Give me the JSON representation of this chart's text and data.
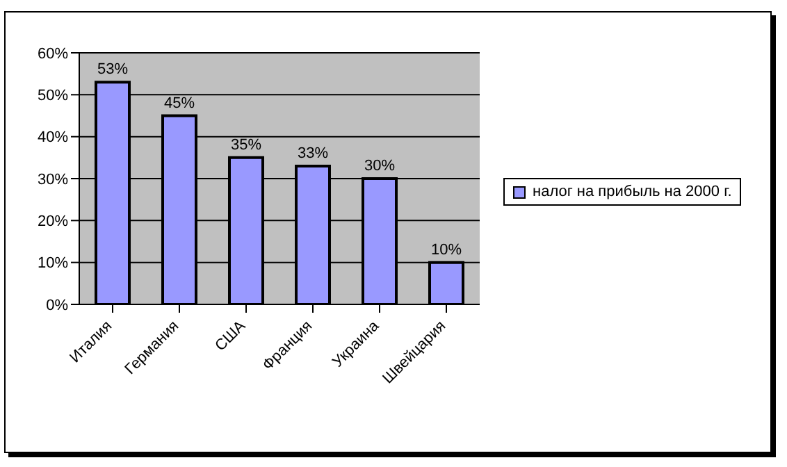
{
  "chart_data": {
    "type": "bar",
    "categories": [
      "Италия",
      "Германия",
      "США",
      "Франция",
      "Украина",
      "Швейцария"
    ],
    "series": [
      {
        "name": "налог на прибыль на 2000 г.",
        "color": "#9999ff",
        "values": [
          53,
          45,
          35,
          33,
          30,
          10
        ],
        "value_labels": [
          "53%",
          "45%",
          "35%",
          "33%",
          "30%",
          "10%"
        ]
      }
    ],
    "ylim": [
      0,
      60
    ],
    "yticks": [
      {
        "value": 0,
        "label": "0%"
      },
      {
        "value": 10,
        "label": "10%"
      },
      {
        "value": 20,
        "label": "20%"
      },
      {
        "value": 30,
        "label": "30%"
      },
      {
        "value": 40,
        "label": "40%"
      },
      {
        "value": 50,
        "label": "50%"
      },
      {
        "value": 60,
        "label": "60%"
      }
    ],
    "grid": "y",
    "legend": "right"
  }
}
